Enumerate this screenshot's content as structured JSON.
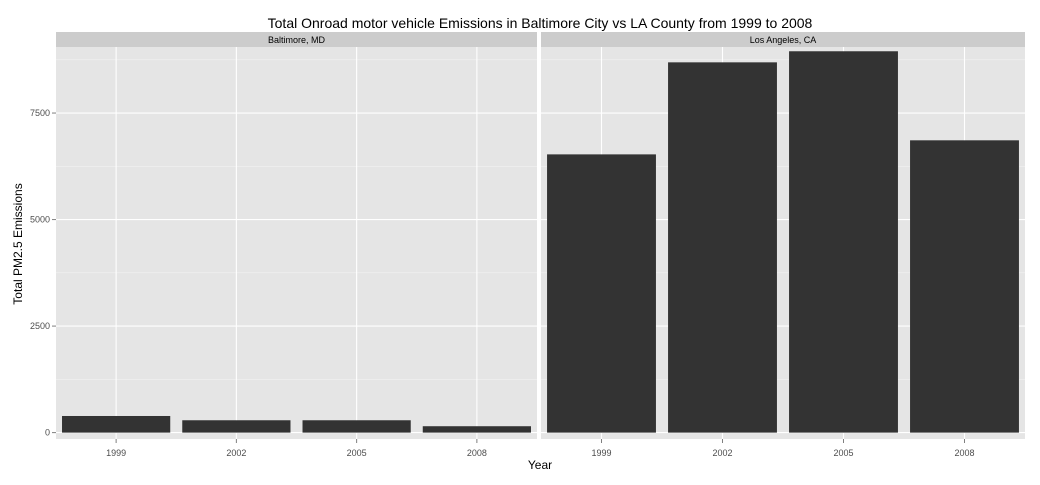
{
  "chart_data": {
    "type": "bar",
    "title": "Total Onroad motor vehicle Emissions in Baltimore City vs LA County from 1999 to 2008",
    "xlabel": "Year",
    "ylabel": "Total PM2.5 Emissions",
    "categories": [
      "1999",
      "2002",
      "2005",
      "2008"
    ],
    "ylim": [
      -150,
      9050
    ],
    "yticks": [
      0,
      2500,
      5000,
      7500
    ],
    "ytick_labels": [
      "0",
      "2500",
      "5000",
      "7500"
    ],
    "grid": true,
    "panels": [
      {
        "label": "Baltimore, MD",
        "values": [
          390,
          290,
          290,
          150
        ]
      },
      {
        "label": "Los Angeles, CA",
        "values": [
          6530,
          8690,
          8950,
          6860
        ]
      }
    ],
    "colors": {
      "bar": "#333333",
      "panel_background": "#e5e5e5",
      "strip_background": "#cccccc",
      "grid_major": "#ffffff",
      "grid_minor": "#f2f2f2",
      "text": "#000000",
      "tick_text": "#4d4d4d"
    }
  }
}
